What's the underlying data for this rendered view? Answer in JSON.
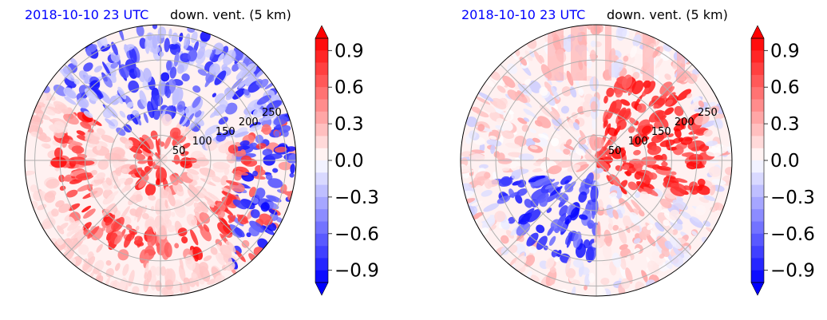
{
  "colors": {
    "negative": "#0000ff",
    "positive": "#ff0000",
    "neutral": "#ffffff",
    "title_date": "#0000ff",
    "grid": "#b0b0b0"
  },
  "chart_data": [
    {
      "type": "heatmap",
      "projection": "polar",
      "title_left": "2018-10-10 23 UTC",
      "title_right": "down. vent. (5 km)",
      "radial_ticks": [
        "50",
        "100",
        "150",
        "200",
        "250"
      ],
      "radial_tick_values": [
        50,
        100,
        150,
        200,
        250
      ],
      "rlim": [
        0,
        270
      ],
      "angular_gridlines_deg": [
        0,
        45,
        90,
        135,
        180,
        225,
        270,
        315
      ],
      "grid": true,
      "colorbar": {
        "vmin": -1.0,
        "vmax": 1.0,
        "levels": 20,
        "extend": "both",
        "colormap": "bwr",
        "tick_values": [
          0.9,
          0.6,
          0.3,
          0.0,
          -0.3,
          -0.6,
          -0.9
        ],
        "tick_labels": [
          "0.9",
          "0.6",
          "0.3",
          "0.0",
          "−0.3",
          "−0.6",
          "−0.9"
        ]
      }
    },
    {
      "type": "heatmap",
      "projection": "polar",
      "title_left": "2018-10-10 23 UTC",
      "title_right": "down. vent. (5 km)",
      "radial_ticks": [
        "50",
        "100",
        "150",
        "200",
        "250"
      ],
      "radial_tick_values": [
        50,
        100,
        150,
        200,
        250
      ],
      "rlim": [
        0,
        270
      ],
      "angular_gridlines_deg": [
        0,
        45,
        90,
        135,
        180,
        225,
        270,
        315
      ],
      "grid": true,
      "colorbar": {
        "vmin": -1.0,
        "vmax": 1.0,
        "levels": 20,
        "extend": "both",
        "colormap": "bwr",
        "tick_values": [
          0.9,
          0.6,
          0.3,
          0.0,
          -0.3,
          -0.6,
          -0.9
        ],
        "tick_labels": [
          "0.9",
          "0.6",
          "0.3",
          "0.0",
          "−0.3",
          "−0.6",
          "−0.9"
        ]
      }
    }
  ]
}
